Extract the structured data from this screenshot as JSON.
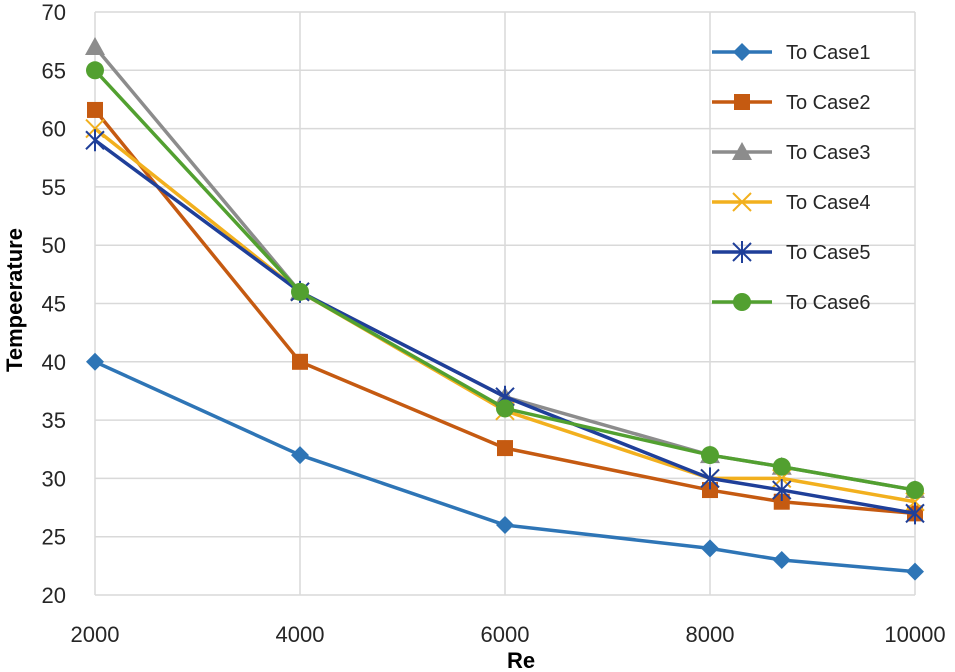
{
  "chart_data": {
    "type": "line",
    "title": "",
    "xlabel": "Re",
    "ylabel": "Tempeerature",
    "xlim": [
      2000,
      10000
    ],
    "ylim": [
      20,
      70
    ],
    "x_ticks": [
      "2000",
      "4000",
      "6000",
      "8000",
      "10000"
    ],
    "y_ticks": [
      "20",
      "25",
      "30",
      "35",
      "40",
      "45",
      "50",
      "55",
      "60",
      "65",
      "70"
    ],
    "grid": true,
    "legend_position": "top-right",
    "x": [
      2000,
      4000,
      6000,
      8000,
      8700,
      10000
    ],
    "series": [
      {
        "name": "To Case1",
        "color": "#2E75B6",
        "marker": "diamond",
        "values": [
          40,
          32,
          26,
          24,
          23,
          22
        ]
      },
      {
        "name": "To Case2",
        "color": "#C55A11",
        "marker": "square",
        "values": [
          61.6,
          40,
          32.6,
          29,
          28,
          27
        ]
      },
      {
        "name": "To Case3",
        "color": "#8C8C8C",
        "marker": "triangle",
        "values": [
          67,
          46,
          37,
          32,
          31,
          29
        ]
      },
      {
        "name": "To Case4",
        "color": "#F2B01E",
        "marker": "x",
        "values": [
          60,
          46,
          35.8,
          30,
          30,
          28
        ]
      },
      {
        "name": "To Case5",
        "color": "#1F3F99",
        "marker": "star",
        "values": [
          59,
          46,
          37,
          30,
          29,
          27
        ]
      },
      {
        "name": "To Case6",
        "color": "#52A030",
        "marker": "circle",
        "values": [
          65,
          46,
          36,
          32,
          31,
          29
        ]
      }
    ]
  }
}
